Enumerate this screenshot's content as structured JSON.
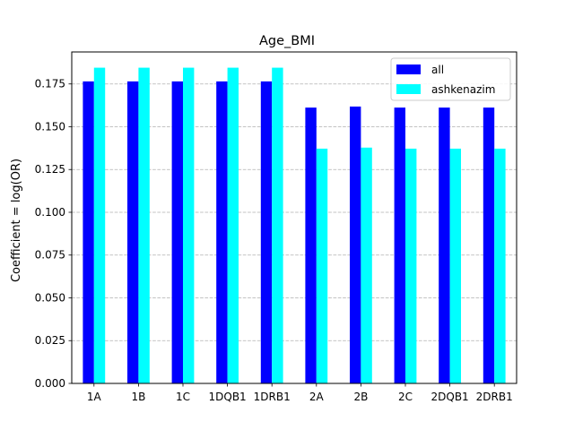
{
  "chart_data": {
    "type": "bar",
    "title": "Age_BMI",
    "xlabel": "",
    "ylabel": "Coefficient = log(OR)",
    "categories": [
      "1A",
      "1B",
      "1C",
      "1DQB1",
      "1DRB1",
      "2A",
      "2B",
      "2C",
      "2DQB1",
      "2DRB1"
    ],
    "series": [
      {
        "name": "all",
        "color": "#0000ff",
        "values": [
          0.1765,
          0.1765,
          0.1765,
          0.1765,
          0.1765,
          0.1612,
          0.1618,
          0.1612,
          0.1612,
          0.1612
        ]
      },
      {
        "name": "ashkenazim",
        "color": "#00ffff",
        "values": [
          0.1845,
          0.1845,
          0.1845,
          0.1845,
          0.1845,
          0.1372,
          0.1378,
          0.1372,
          0.1372,
          0.1372
        ]
      }
    ],
    "ylim": [
      0,
      0.1937
    ],
    "yticks": [
      "0.000",
      "0.025",
      "0.050",
      "0.075",
      "0.100",
      "0.125",
      "0.150",
      "0.175"
    ],
    "grid": "y-dashed",
    "legend_position": "top-right"
  }
}
